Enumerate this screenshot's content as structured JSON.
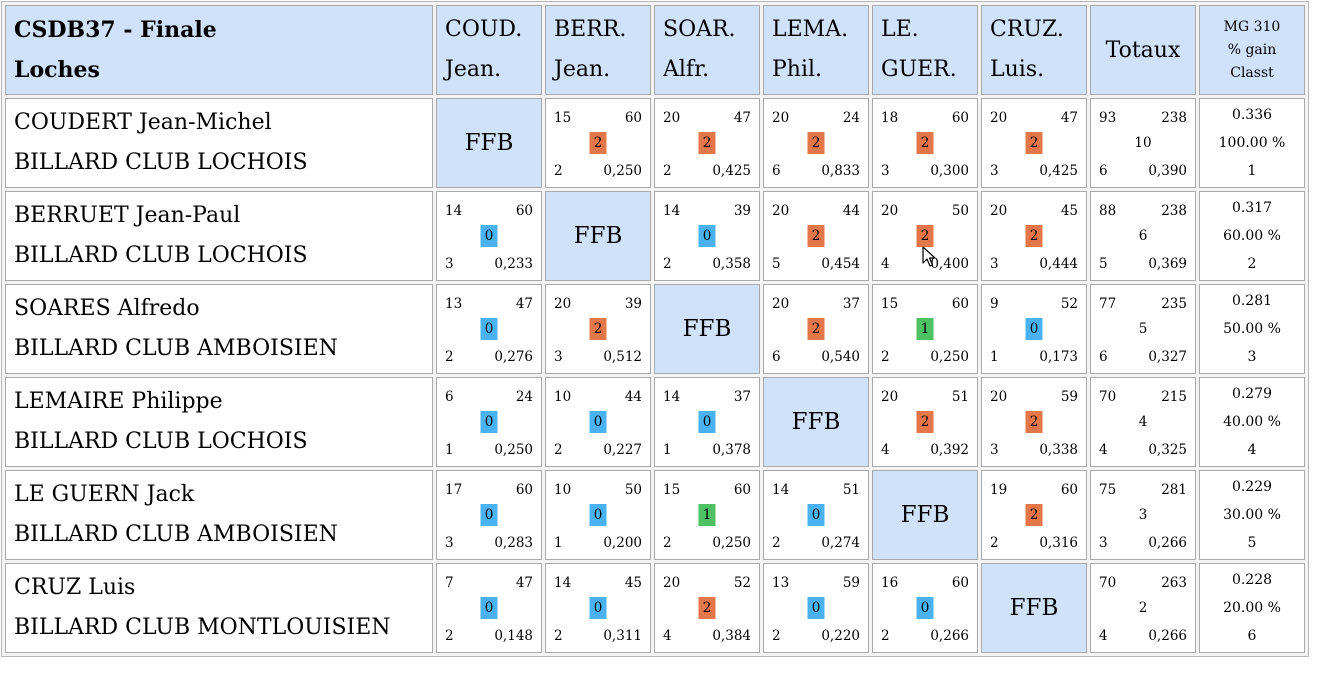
{
  "title": [
    "CSDB37 - Finale",
    "Loches"
  ],
  "columns": [
    [
      "COUD.",
      "Jean."
    ],
    [
      "BERR.",
      "Jean."
    ],
    [
      "SOAR.",
      "Alfr."
    ],
    [
      "LEMA.",
      "Phil."
    ],
    [
      "LE.",
      "GUER."
    ],
    [
      "CRUZ.",
      "Luis."
    ]
  ],
  "totals_header": "Totaux",
  "mg_header": [
    "MG 310",
    "% gain",
    "Classt"
  ],
  "self_label": "FFB",
  "players": [
    {
      "name": "COUDERT Jean-Michel",
      "club": "BILLARD CLUB LOCHOIS",
      "matches": [
        null,
        {
          "tl": "15",
          "tr": "60",
          "badge": "2",
          "bl": "2",
          "br": "0,250"
        },
        {
          "tl": "20",
          "tr": "47",
          "badge": "2",
          "bl": "2",
          "br": "0,425"
        },
        {
          "tl": "20",
          "tr": "24",
          "badge": "2",
          "bl": "6",
          "br": "0,833"
        },
        {
          "tl": "18",
          "tr": "60",
          "badge": "2",
          "bl": "3",
          "br": "0,300"
        },
        {
          "tl": "20",
          "tr": "47",
          "badge": "2",
          "bl": "3",
          "br": "0,425"
        }
      ],
      "totals": {
        "tl": "93",
        "tr": "238",
        "mid": "10",
        "bl": "6",
        "br": "0,390"
      },
      "ranking": {
        "mg": "0.336",
        "pct": "100.00 %",
        "rank": "1"
      }
    },
    {
      "name": "BERRUET Jean-Paul",
      "club": "BILLARD CLUB LOCHOIS",
      "matches": [
        {
          "tl": "14",
          "tr": "60",
          "badge": "0",
          "bl": "3",
          "br": "0,233"
        },
        null,
        {
          "tl": "14",
          "tr": "39",
          "badge": "0",
          "bl": "2",
          "br": "0,358"
        },
        {
          "tl": "20",
          "tr": "44",
          "badge": "2",
          "bl": "5",
          "br": "0,454"
        },
        {
          "tl": "20",
          "tr": "50",
          "badge": "2",
          "bl": "4",
          "br": "0,400"
        },
        {
          "tl": "20",
          "tr": "45",
          "badge": "2",
          "bl": "3",
          "br": "0,444"
        }
      ],
      "totals": {
        "tl": "88",
        "tr": "238",
        "mid": "6",
        "bl": "5",
        "br": "0,369"
      },
      "ranking": {
        "mg": "0.317",
        "pct": "60.00 %",
        "rank": "2"
      }
    },
    {
      "name": "SOARES Alfredo",
      "club": "BILLARD CLUB AMBOISIEN",
      "matches": [
        {
          "tl": "13",
          "tr": "47",
          "badge": "0",
          "bl": "2",
          "br": "0,276"
        },
        {
          "tl": "20",
          "tr": "39",
          "badge": "2",
          "bl": "3",
          "br": "0,512"
        },
        null,
        {
          "tl": "20",
          "tr": "37",
          "badge": "2",
          "bl": "6",
          "br": "0,540"
        },
        {
          "tl": "15",
          "tr": "60",
          "badge": "1",
          "bl": "2",
          "br": "0,250"
        },
        {
          "tl": "9",
          "tr": "52",
          "badge": "0",
          "bl": "1",
          "br": "0,173"
        }
      ],
      "totals": {
        "tl": "77",
        "tr": "235",
        "mid": "5",
        "bl": "6",
        "br": "0,327"
      },
      "ranking": {
        "mg": "0.281",
        "pct": "50.00 %",
        "rank": "3"
      }
    },
    {
      "name": "LEMAIRE Philippe",
      "club": "BILLARD CLUB LOCHOIS",
      "matches": [
        {
          "tl": "6",
          "tr": "24",
          "badge": "0",
          "bl": "1",
          "br": "0,250"
        },
        {
          "tl": "10",
          "tr": "44",
          "badge": "0",
          "bl": "2",
          "br": "0,227"
        },
        {
          "tl": "14",
          "tr": "37",
          "badge": "0",
          "bl": "1",
          "br": "0,378"
        },
        null,
        {
          "tl": "20",
          "tr": "51",
          "badge": "2",
          "bl": "4",
          "br": "0,392"
        },
        {
          "tl": "20",
          "tr": "59",
          "badge": "2",
          "bl": "3",
          "br": "0,338"
        }
      ],
      "totals": {
        "tl": "70",
        "tr": "215",
        "mid": "4",
        "bl": "4",
        "br": "0,325"
      },
      "ranking": {
        "mg": "0.279",
        "pct": "40.00 %",
        "rank": "4"
      }
    },
    {
      "name": "LE GUERN Jack",
      "club": "BILLARD CLUB AMBOISIEN",
      "matches": [
        {
          "tl": "17",
          "tr": "60",
          "badge": "0",
          "bl": "3",
          "br": "0,283"
        },
        {
          "tl": "10",
          "tr": "50",
          "badge": "0",
          "bl": "1",
          "br": "0,200"
        },
        {
          "tl": "15",
          "tr": "60",
          "badge": "1",
          "bl": "2",
          "br": "0,250"
        },
        {
          "tl": "14",
          "tr": "51",
          "badge": "0",
          "bl": "2",
          "br": "0,274"
        },
        null,
        {
          "tl": "19",
          "tr": "60",
          "badge": "2",
          "bl": "2",
          "br": "0,316"
        }
      ],
      "totals": {
        "tl": "75",
        "tr": "281",
        "mid": "3",
        "bl": "3",
        "br": "0,266"
      },
      "ranking": {
        "mg": "0.229",
        "pct": "30.00 %",
        "rank": "5"
      }
    },
    {
      "name": "CRUZ Luis",
      "club": "BILLARD CLUB MONTLOUISIEN",
      "matches": [
        {
          "tl": "7",
          "tr": "47",
          "badge": "0",
          "bl": "2",
          "br": "0,148"
        },
        {
          "tl": "14",
          "tr": "45",
          "badge": "0",
          "bl": "2",
          "br": "0,311"
        },
        {
          "tl": "20",
          "tr": "52",
          "badge": "2",
          "bl": "4",
          "br": "0,384"
        },
        {
          "tl": "13",
          "tr": "59",
          "badge": "0",
          "bl": "2",
          "br": "0,220"
        },
        {
          "tl": "16",
          "tr": "60",
          "badge": "0",
          "bl": "2",
          "br": "0,266"
        },
        null
      ],
      "totals": {
        "tl": "70",
        "tr": "263",
        "mid": "2",
        "bl": "4",
        "br": "0,266"
      },
      "ranking": {
        "mg": "0.228",
        "pct": "20.00 %",
        "rank": "6"
      }
    }
  ],
  "badge_colors": {
    "0": "#4ab2f0",
    "1": "#4ec262",
    "2": "#e4774a"
  },
  "header_bg": "#cfe2fa"
}
